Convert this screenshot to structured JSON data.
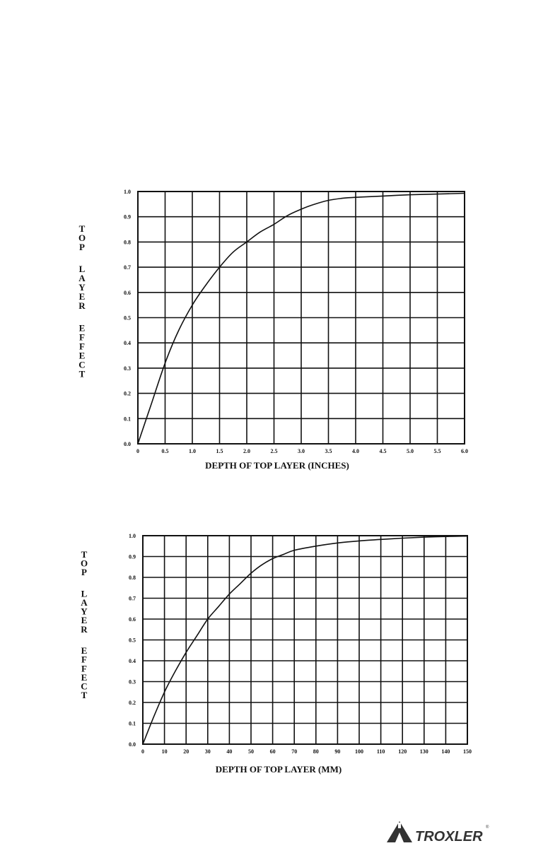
{
  "chart_data": [
    {
      "type": "line",
      "title": "",
      "xlabel": "DEPTH OF TOP LAYER (INCHES)",
      "ylabel": "TOP LAYER EFFECT",
      "xlim": [
        0,
        6.0
      ],
      "ylim": [
        0.0,
        1.0
      ],
      "grid": true,
      "x_ticks": [
        "0",
        "0.5",
        "1.0",
        "1.5",
        "2.0",
        "2.5",
        "3.0",
        "3.5",
        "4.0",
        "4.5",
        "5.0",
        "5.5",
        "6.0"
      ],
      "y_ticks": [
        "0.0",
        "0.1",
        "0.2",
        "0.3",
        "0.4",
        "0.5",
        "0.6",
        "0.7",
        "0.8",
        "0.9",
        "1.0"
      ],
      "series": [
        {
          "x": [
            0,
            0.25,
            0.5,
            0.75,
            1.0,
            1.25,
            1.5,
            1.75,
            2.0,
            2.25,
            2.5,
            2.75,
            3.0,
            3.25,
            3.5,
            3.75,
            4.0,
            4.5,
            5.0,
            5.5,
            6.0
          ],
          "values": [
            0.0,
            0.16,
            0.32,
            0.45,
            0.55,
            0.63,
            0.7,
            0.76,
            0.8,
            0.84,
            0.87,
            0.905,
            0.93,
            0.95,
            0.965,
            0.973,
            0.977,
            0.982,
            0.987,
            0.99,
            0.993
          ]
        }
      ]
    },
    {
      "type": "line",
      "title": "",
      "xlabel": "DEPTH OF TOP LAYER (MM)",
      "ylabel": "TOP LAYER EFFECT",
      "xlim": [
        0,
        150
      ],
      "ylim": [
        0.0,
        1.0
      ],
      "grid": true,
      "x_ticks": [
        "0",
        "10",
        "20",
        "30",
        "40",
        "50",
        "60",
        "70",
        "80",
        "90",
        "100",
        "110",
        "120",
        "130",
        "140",
        "150"
      ],
      "y_ticks": [
        "0.0",
        "0.1",
        "0.2",
        "0.3",
        "0.4",
        "0.5",
        "0.6",
        "0.7",
        "0.8",
        "0.9",
        "1.0"
      ],
      "series": [
        {
          "x": [
            0,
            5,
            10,
            15,
            20,
            25,
            30,
            35,
            40,
            45,
            50,
            55,
            60,
            65,
            70,
            80,
            90,
            100,
            110,
            120,
            130,
            140,
            150
          ],
          "values": [
            0.0,
            0.13,
            0.25,
            0.35,
            0.44,
            0.52,
            0.6,
            0.66,
            0.72,
            0.77,
            0.82,
            0.86,
            0.89,
            0.91,
            0.93,
            0.95,
            0.965,
            0.975,
            0.982,
            0.988,
            0.993,
            0.996,
            0.998
          ]
        }
      ]
    }
  ],
  "logo": {
    "text": "TROXLER",
    "registered": "®"
  }
}
